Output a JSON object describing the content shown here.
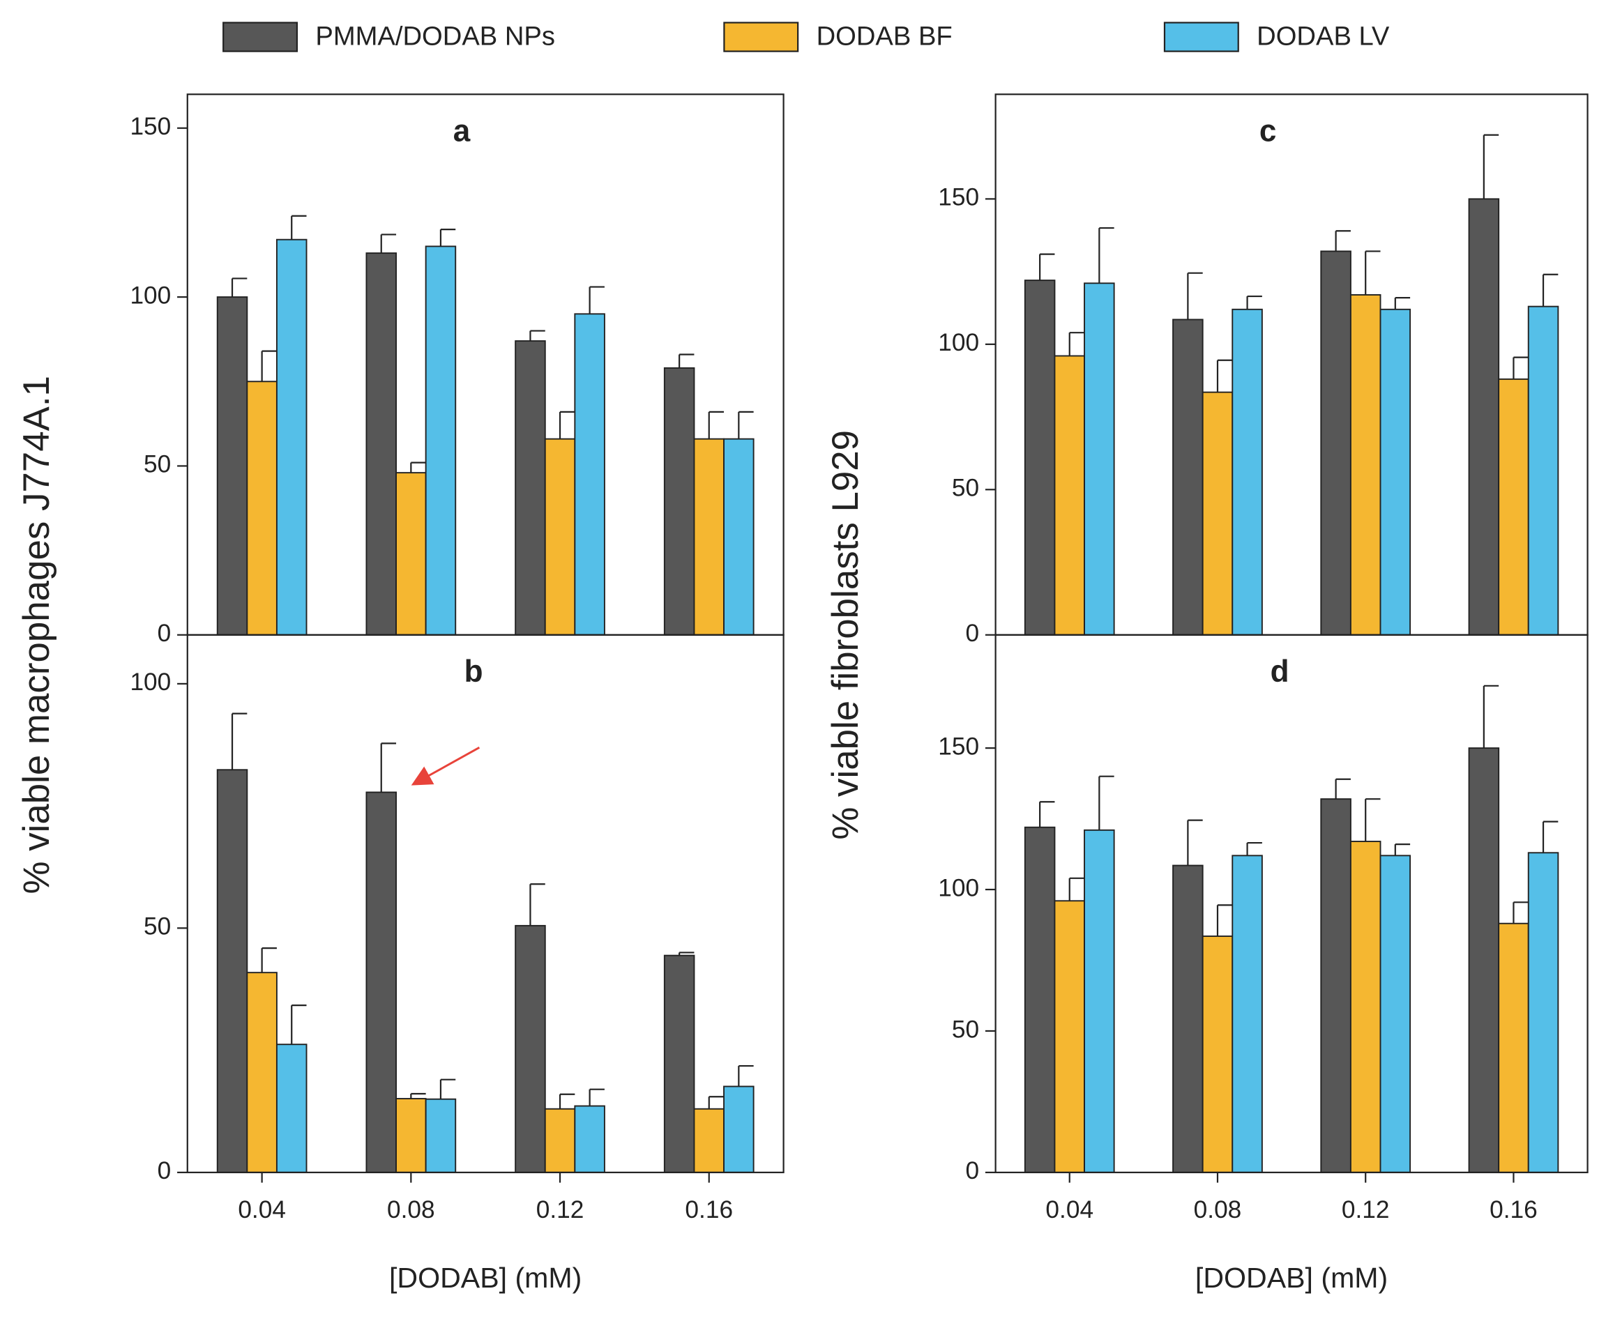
{
  "legend": [
    {
      "name": "PMMA/DODAB  NPs",
      "color": "#575757"
    },
    {
      "name": "DODAB BF",
      "color": "#f5b731"
    },
    {
      "name": "DODAB LV",
      "color": "#55bfe8"
    }
  ],
  "chart_data": [
    {
      "type": "bar",
      "panel_label": "a",
      "y_label": "% viable macrophages J774A.1",
      "series": [
        {
          "values": [
            100,
            113,
            87,
            79
          ],
          "errors": [
            5.5,
            5.5,
            3,
            4
          ]
        },
        {
          "values": [
            75,
            48,
            58,
            58
          ],
          "errors": [
            9,
            3,
            8,
            8
          ]
        },
        {
          "values": [
            117,
            115,
            95,
            58
          ],
          "errors": [
            7,
            5,
            8,
            8
          ]
        }
      ],
      "ylim": [
        0,
        160
      ],
      "yticks": [
        0,
        50,
        100,
        150
      ]
    },
    {
      "type": "bar",
      "panel_label": "b",
      "x_label": "[DODAB] (mM)",
      "categories": [
        "0.04",
        "0.08",
        "0.12",
        "0.16"
      ],
      "series": [
        {
          "values": [
            82.4,
            77.8,
            50.5,
            44.4
          ],
          "errors": [
            11.5,
            10,
            8.5,
            0.6
          ]
        },
        {
          "values": [
            40.9,
            15.1,
            13,
            13
          ],
          "errors": [
            5,
            1,
            3,
            2.5
          ]
        },
        {
          "values": [
            26.2,
            15,
            13.6,
            17.6
          ],
          "errors": [
            8,
            4,
            3.4,
            4.2
          ]
        }
      ],
      "ylim": [
        0,
        110
      ],
      "yticks": [
        0,
        50,
        100
      ]
    },
    {
      "type": "bar",
      "panel_label": "c",
      "y_label": "% viable fibroblasts L929",
      "series": [
        {
          "values": [
            122,
            108.5,
            132,
            150
          ],
          "errors": [
            9,
            16,
            7,
            22
          ]
        },
        {
          "values": [
            96,
            83.5,
            117,
            88
          ],
          "errors": [
            8,
            11,
            15,
            7.5
          ]
        },
        {
          "values": [
            121,
            112,
            112,
            113
          ],
          "errors": [
            19,
            4.5,
            4,
            11
          ]
        }
      ],
      "ylim": [
        0,
        186
      ],
      "yticks": [
        0,
        50,
        100,
        150
      ]
    },
    {
      "type": "bar",
      "panel_label": "d",
      "x_label": "[DODAB] (mM)",
      "categories": [
        "0.04",
        "0.08",
        "0.12",
        "0.16"
      ],
      "series": [
        {
          "values": [
            122,
            108.5,
            132,
            150
          ],
          "errors": [
            9,
            16,
            7,
            22
          ]
        },
        {
          "values": [
            96,
            83.5,
            117,
            88
          ],
          "errors": [
            8,
            11,
            15,
            7.5
          ]
        },
        {
          "values": [
            121,
            112,
            112,
            113
          ],
          "errors": [
            19,
            4.5,
            4,
            11
          ]
        }
      ],
      "ylim": [
        0,
        190
      ],
      "yticks": [
        0,
        50,
        100,
        150
      ]
    }
  ]
}
